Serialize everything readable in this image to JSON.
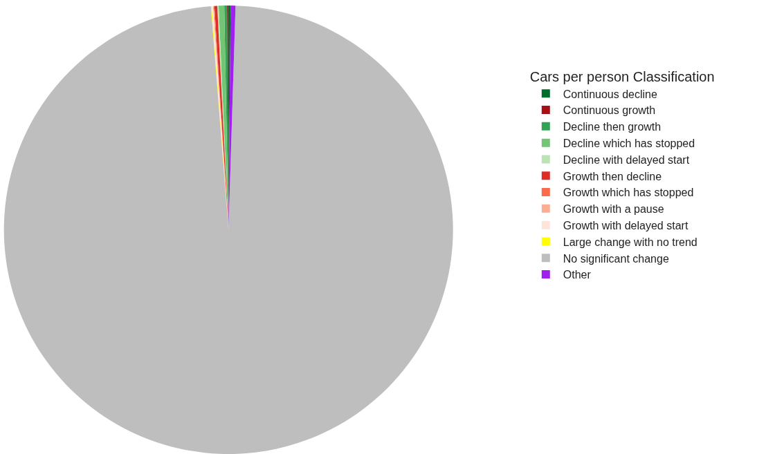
{
  "chart_data": {
    "type": "pie",
    "legend_title": "Cars per person Classification",
    "legend": "right",
    "categories": [
      "Continuous decline",
      "Continuous growth",
      "Decline then growth",
      "Decline which has stopped",
      "Decline with delayed start",
      "Growth then decline",
      "Growth which has stopped",
      "Growth with a pause",
      "Growth with delayed start",
      "Large change with no trend",
      "No significant change",
      "Other"
    ],
    "values": [
      0.15,
      0.1,
      0.2,
      0.4,
      0.1,
      0.2,
      0.05,
      0.05,
      0.1,
      0.05,
      98.25,
      0.35
    ],
    "colors": [
      "#006d2c",
      "#a50f15",
      "#31a354",
      "#74c476",
      "#bae4b3",
      "#de2d26",
      "#fb6a4a",
      "#fcae91",
      "#fee5d9",
      "#ffff00",
      "#bebebe",
      "#a020f0"
    ]
  }
}
